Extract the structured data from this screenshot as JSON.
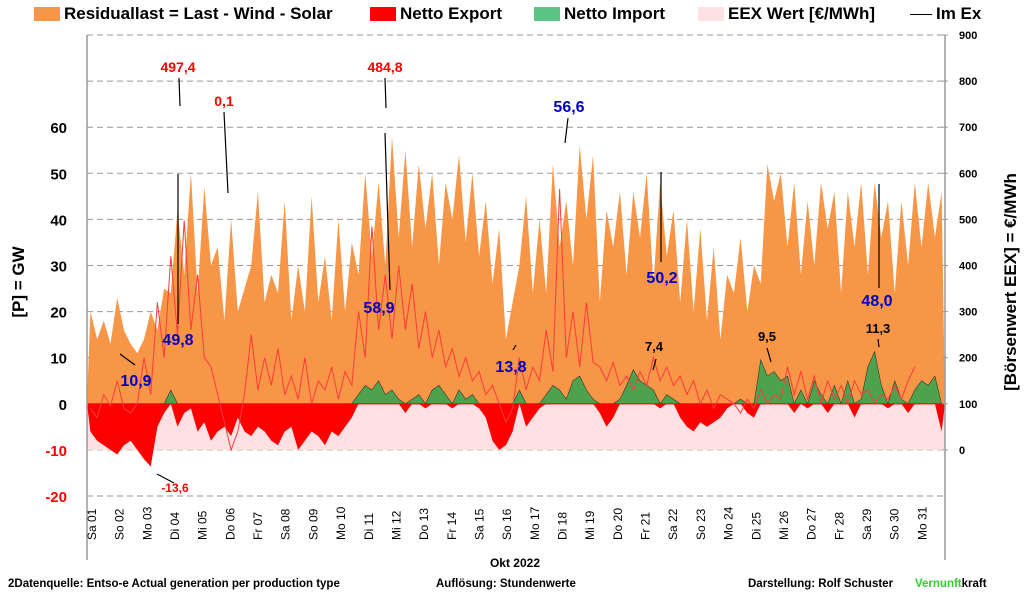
{
  "legend": {
    "residual": "Residuallast  =  Last - Wind - Solar",
    "export": "Netto Export",
    "import": "Netto Import",
    "eex": "EEX Wert [€/MWh]",
    "imex": "Im Ex"
  },
  "colors": {
    "residual": "#f79646",
    "export": "#ff0000",
    "import": "#4ea24e",
    "eex_fill": "#ffe0e3",
    "eex_line": "#ff3b3b",
    "annot_price": "#ff0000",
    "annot_residual": "#0000c0",
    "annot_import": "#000000",
    "annot_export": "#ff0000",
    "brand_green": "#33cc33"
  },
  "footer": {
    "source": "2Datenquelle: Entso-e  Actual generation per production type",
    "resolution": "Auflösung: Stundenwerte",
    "author": "Darstellung:  Rolf Schuster",
    "brand_a": "Vernunft",
    "brand_b": "kraft"
  },
  "chart_data": {
    "type": "area",
    "title": "",
    "xlabel": "Okt 2022",
    "ylabel": "[P]  = GW",
    "y2label": "[Börsenwert  EEX]   = €/MWh",
    "ylim": [
      -20,
      80
    ],
    "y_ticks": [
      -20,
      -10,
      0,
      10,
      20,
      30,
      40,
      50,
      60
    ],
    "y2lim": [
      -100,
      900
    ],
    "y2_ticks": [
      0,
      100,
      200,
      300,
      400,
      500,
      600,
      700,
      800,
      900
    ],
    "grid": true,
    "legend_position": "top",
    "categories": [
      "Sa 01",
      "So 02",
      "Mo 03",
      "Di 04",
      "Mi 05",
      "Do 06",
      "Fr 07",
      "Sa 08",
      "So 09",
      "Mo 10",
      "Di 11",
      "Mi 12",
      "Do 13",
      "Fr 14",
      "Sa 15",
      "So 16",
      "Mo 17",
      "Di 18",
      "Mi 19",
      "Do 20",
      "Fr 21",
      "Sa 22",
      "So 23",
      "Mo 24",
      "Di 25",
      "Mi 26",
      "Do 27",
      "Fr 28",
      "Sa 29",
      "So 30",
      "Mo 31"
    ],
    "x_unit": "6h steps (4 values per day)",
    "series": [
      {
        "name": "Residuallast",
        "unit": "GW",
        "values": [
          20,
          14,
          18,
          13,
          23,
          16,
          13,
          11,
          14,
          20,
          16,
          25,
          24,
          42,
          28,
          50,
          24,
          47,
          30,
          34,
          18,
          40,
          20,
          25,
          30,
          46,
          22,
          28,
          24,
          44,
          18,
          30,
          20,
          45,
          22,
          32,
          18,
          40,
          20,
          35,
          28,
          50,
          32,
          48,
          30,
          58,
          36,
          55,
          34,
          52,
          38,
          50,
          30,
          48,
          40,
          54,
          35,
          50,
          32,
          44,
          26,
          38,
          14,
          22,
          30,
          45,
          24,
          40,
          24,
          52,
          34,
          44,
          30,
          56,
          40,
          54,
          22,
          42,
          34,
          46,
          28,
          46,
          36,
          50,
          26,
          48,
          32,
          42,
          22,
          40,
          20,
          38,
          18,
          34,
          14,
          28,
          24,
          36,
          20,
          30,
          26,
          52,
          44,
          50,
          34,
          48,
          28,
          44,
          30,
          48,
          38,
          46,
          24,
          46,
          34,
          48,
          28,
          48,
          36,
          44,
          24,
          44,
          30,
          48,
          34,
          48,
          36,
          46
        ]
      },
      {
        "name": "Netto Import/Export",
        "unit": "GW",
        "values": [
          -6,
          -8,
          -9,
          -10,
          -11,
          -9,
          -8,
          -10,
          -12,
          -13.6,
          -5,
          -2,
          3,
          -5,
          -2,
          -1,
          -6,
          -4,
          -8,
          -6,
          -5,
          -7,
          -3,
          -6,
          -7,
          -5,
          -6,
          -8,
          -9,
          -6,
          -5,
          -10,
          -8,
          -6,
          -7,
          -9,
          -6,
          -7,
          -5,
          -3,
          2,
          4,
          3,
          5,
          2,
          3,
          1,
          -2,
          1,
          2,
          -1,
          3,
          4,
          2,
          -1,
          3,
          1,
          2,
          -1,
          -3,
          -8,
          -10,
          -9,
          -6,
          3,
          -5,
          -3,
          -1,
          2,
          4,
          3,
          1,
          5,
          6,
          3,
          1,
          -2,
          -5,
          -3,
          1,
          4,
          7.4,
          5,
          4,
          3,
          -1,
          2,
          1,
          -3,
          -5,
          -6,
          -4,
          -5,
          -4,
          -3,
          -1,
          0,
          1,
          -2,
          -3,
          9.5,
          6,
          7,
          5,
          6,
          -2,
          3,
          -1,
          5,
          2,
          -2,
          4,
          0,
          5,
          -3,
          1,
          8,
          11.3,
          4,
          -1,
          5,
          1,
          -2,
          3,
          5,
          4,
          6,
          -6
        ]
      },
      {
        "name": "EEX Wert",
        "unit": "€/MWh",
        "values": [
          90,
          70,
          120,
          95,
          150,
          90,
          80,
          100,
          200,
          120,
          320,
          200,
          420,
          250,
          497.4,
          260,
          380,
          200,
          180,
          120,
          60,
          0.1,
          40,
          120,
          250,
          130,
          200,
          140,
          220,
          120,
          160,
          110,
          200,
          100,
          150,
          130,
          180,
          110,
          170,
          140,
          300,
          200,
          484.8,
          260,
          380,
          240,
          400,
          260,
          360,
          220,
          300,
          200,
          260,
          180,
          220,
          160,
          200,
          150,
          170,
          120,
          140,
          100,
          60,
          90,
          200,
          130,
          180,
          150,
          260,
          170,
          566,
          200,
          300,
          180,
          320,
          190,
          180,
          150,
          190,
          140,
          160,
          130,
          170,
          140,
          200,
          150,
          180,
          140,
          160,
          120,
          150,
          100,
          130,
          90,
          120,
          110,
          100,
          80,
          110,
          90,
          130,
          100,
          120,
          110,
          180,
          120,
          170,
          110,
          160,
          100,
          150,
          110,
          140,
          100,
          150,
          120,
          130,
          100,
          120,
          110,
          140,
          110,
          150,
          180
        ]
      }
    ],
    "annotations": [
      {
        "text": "497,4",
        "series": "EEX Wert",
        "kind": "max"
      },
      {
        "text": "0,1",
        "series": "EEX Wert",
        "kind": "min"
      },
      {
        "text": "484,8",
        "series": "EEX Wert",
        "kind": "max"
      },
      {
        "text": "49,8",
        "series": "Residuallast",
        "kind": "max"
      },
      {
        "text": "58,9",
        "series": "Residuallast",
        "kind": "max"
      },
      {
        "text": "56,6",
        "series": "Residuallast",
        "kind": "max"
      },
      {
        "text": "50,2",
        "series": "Residuallast",
        "kind": "max"
      },
      {
        "text": "48,0",
        "series": "Residuallast",
        "kind": "max"
      },
      {
        "text": "10,9",
        "series": "Residuallast",
        "kind": "min"
      },
      {
        "text": "13,8",
        "series": "Residuallast",
        "kind": "min"
      },
      {
        "text": "7,4",
        "series": "Netto Import",
        "kind": "max"
      },
      {
        "text": "9,5",
        "series": "Netto Import",
        "kind": "max"
      },
      {
        "text": "11,3",
        "series": "Netto Import",
        "kind": "max"
      },
      {
        "text": "-13,6",
        "series": "Netto Export",
        "kind": "min"
      }
    ]
  }
}
